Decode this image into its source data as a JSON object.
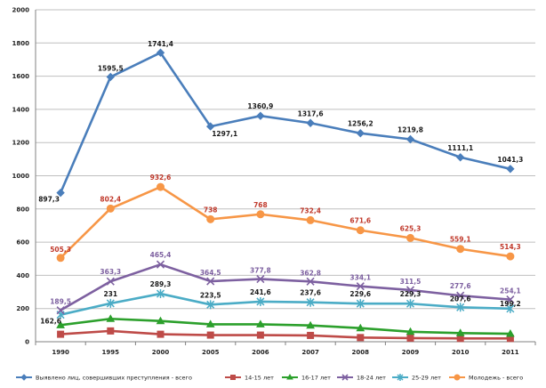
{
  "chart_data": {
    "type": "line",
    "title": "",
    "xlabel": "",
    "ylabel": "",
    "ylim": [
      0,
      2000
    ],
    "yticks": [
      0,
      200,
      400,
      600,
      800,
      1000,
      1200,
      1400,
      1600,
      1800,
      2000
    ],
    "grid": true,
    "legend_position": "bottom",
    "categories": [
      "1990",
      "1995",
      "2000",
      "2005",
      "2006",
      "2007",
      "2008",
      "2009",
      "2010",
      "2011"
    ],
    "series": [
      {
        "name": "Выявлено лиц, совершивших преступления - всего",
        "color": "#4a7ebb",
        "marker": "diamond",
        "values": [
          897.3,
          1595.5,
          1741.4,
          1297.1,
          1360.9,
          1317.6,
          1256.2,
          1219.8,
          1111.1,
          1041.3
        ],
        "labels": [
          "897,3",
          "1595,5",
          "1741,4",
          "1297,1",
          "1360,9",
          "1317,6",
          "1256,2",
          "1219,8",
          "1111,1",
          "1041,3"
        ],
        "label_color": "#1a1a1a"
      },
      {
        "name": "14-15 лет",
        "color": "#be4b48",
        "marker": "square",
        "values": [
          45,
          65,
          45,
          40,
          40,
          38,
          25,
          22,
          20,
          20
        ],
        "labels": [],
        "label_color": "#be4b48"
      },
      {
        "name": "16-17 лет",
        "color": "#2ca02c",
        "marker": "triangle",
        "values": [
          100,
          138,
          125,
          105,
          105,
          98,
          82,
          60,
          52,
          48
        ],
        "labels": [],
        "label_color": "#2ca02c"
      },
      {
        "name": "18-24 лет",
        "color": "#7d60a0",
        "marker": "x",
        "values": [
          189.5,
          363.3,
          465.4,
          364.5,
          377.8,
          362.8,
          334.1,
          311.5,
          277.6,
          254.1
        ],
        "labels": [
          "189,5",
          "363,3",
          "465,4",
          "364,5",
          "377,8",
          "362,8",
          "334,1",
          "311,5",
          "277,6",
          "254,1"
        ],
        "label_color": "#7d60a0"
      },
      {
        "name": "25-29 лет",
        "color": "#4bacc6",
        "marker": "star",
        "values": [
          162.6,
          231,
          289.3,
          223.5,
          241.6,
          237.6,
          229.6,
          229.3,
          207.6,
          199.2
        ],
        "labels": [
          "162,6",
          "231",
          "289,3",
          "223,5",
          "241,6",
          "237,6",
          "229,6",
          "229,3",
          "207,6",
          "199,2"
        ],
        "label_color": "#1a1a1a"
      },
      {
        "name": "Молодежь - всего",
        "color": "#f79646",
        "marker": "circle",
        "values": [
          505.3,
          802.4,
          932.6,
          738,
          768,
          732.4,
          671.6,
          625.3,
          559.1,
          514.3
        ],
        "labels": [
          "505,3",
          "802,4",
          "932,6",
          "738",
          "768",
          "732,4",
          "671,6",
          "625,3",
          "559,1",
          "514,3"
        ],
        "label_color": "#c0392b"
      }
    ]
  }
}
